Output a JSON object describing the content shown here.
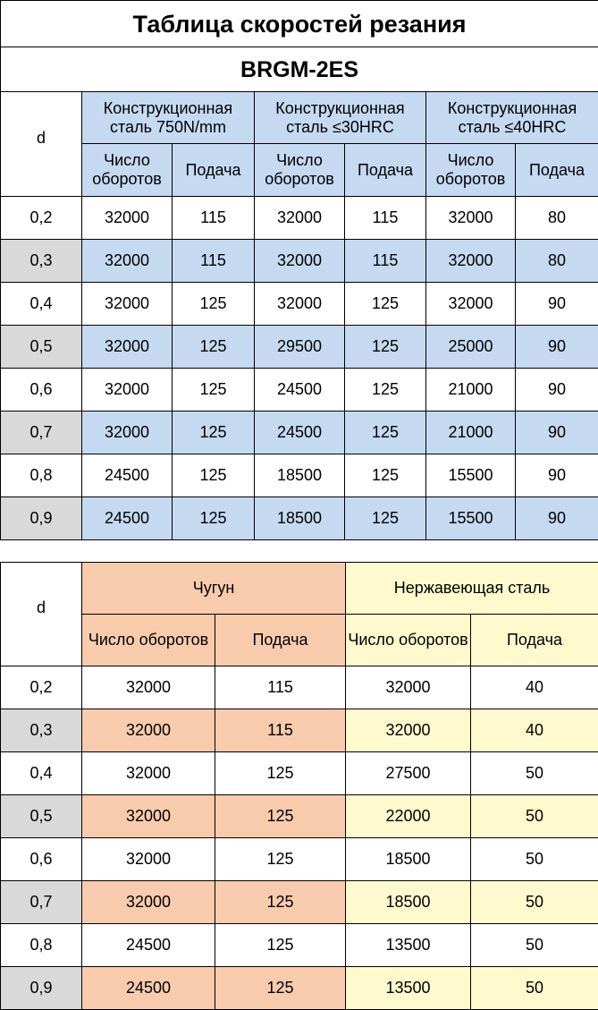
{
  "title": "Таблица скоростей резания",
  "model": "BRGM-2ES",
  "table1": {
    "d_label": "d",
    "groups": [
      "Конструкционная сталь 750N/mm",
      "Конструкционная сталь ≤30HRC",
      "Конструкционная сталь ≤40HRC"
    ],
    "sub_speed": "Число оборотов",
    "sub_feed": "Подача",
    "rows": [
      {
        "d": "0,2",
        "v": [
          "32000",
          "115",
          "32000",
          "115",
          "32000",
          "80"
        ]
      },
      {
        "d": "0,3",
        "v": [
          "32000",
          "115",
          "32000",
          "115",
          "32000",
          "80"
        ]
      },
      {
        "d": "0,4",
        "v": [
          "32000",
          "125",
          "32000",
          "125",
          "32000",
          "90"
        ]
      },
      {
        "d": "0,5",
        "v": [
          "32000",
          "125",
          "29500",
          "125",
          "25000",
          "90"
        ]
      },
      {
        "d": "0,6",
        "v": [
          "32000",
          "125",
          "24500",
          "125",
          "21000",
          "90"
        ]
      },
      {
        "d": "0,7",
        "v": [
          "32000",
          "125",
          "24500",
          "125",
          "21000",
          "90"
        ]
      },
      {
        "d": "0,8",
        "v": [
          "24500",
          "125",
          "18500",
          "125",
          "15500",
          "90"
        ]
      },
      {
        "d": "0,9",
        "v": [
          "24500",
          "125",
          "18500",
          "125",
          "15500",
          "90"
        ]
      }
    ]
  },
  "table2": {
    "d_label": "d",
    "groups": [
      "Чугун",
      "Нержавеющая сталь"
    ],
    "sub_speed": "Число оборотов",
    "sub_feed": "Подача",
    "rows": [
      {
        "d": "0,2",
        "v": [
          "32000",
          "115",
          "32000",
          "40"
        ]
      },
      {
        "d": "0,3",
        "v": [
          "32000",
          "115",
          "32000",
          "40"
        ]
      },
      {
        "d": "0,4",
        "v": [
          "32000",
          "125",
          "27500",
          "50"
        ]
      },
      {
        "d": "0,5",
        "v": [
          "32000",
          "125",
          "22000",
          "50"
        ]
      },
      {
        "d": "0,6",
        "v": [
          "32000",
          "125",
          "18500",
          "50"
        ]
      },
      {
        "d": "0,7",
        "v": [
          "32000",
          "125",
          "18500",
          "50"
        ]
      },
      {
        "d": "0,8",
        "v": [
          "24500",
          "125",
          "13500",
          "50"
        ]
      },
      {
        "d": "0,9",
        "v": [
          "24500",
          "125",
          "13500",
          "50"
        ]
      }
    ]
  },
  "colors": {
    "steel_highlight": "#c5d9f1",
    "row_highlight_d": "#d9d9d9",
    "cast_iron": "#f8cbad",
    "stainless": "#fffacd"
  }
}
